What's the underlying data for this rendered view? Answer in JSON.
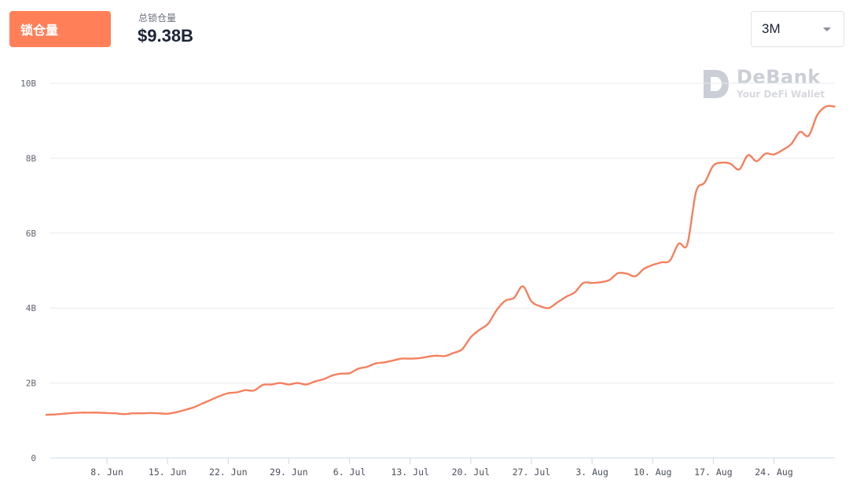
{
  "header": {
    "tab_label": "锁仓量",
    "stat_label": "总锁仓量",
    "stat_value": "$9.38B",
    "range": "3M"
  },
  "watermark": {
    "brand": "DeBank",
    "tagline": "Your DeFi Wallet"
  },
  "colors": {
    "accent": "#ff8058",
    "line": "#f48060",
    "grid": "#e9ebef",
    "axis": "#cdd8e8"
  },
  "icons": {
    "range_dropdown": "caret-down-icon",
    "watermark_logo": "debank-logo-icon"
  },
  "chart_data": {
    "type": "line",
    "title": "",
    "xlabel": "",
    "ylabel": "",
    "ylim": [
      0,
      10
    ],
    "y_unit": "B",
    "y_ticks": [
      0,
      2,
      4,
      6,
      8,
      10
    ],
    "y_tick_labels": [
      "0",
      "2B",
      "4B",
      "6B",
      "8B",
      "10B"
    ],
    "grid": true,
    "legend": "none",
    "x_tick_labels": [
      {
        "date": "2020-06-08",
        "label": "8. Jun"
      },
      {
        "date": "2020-06-15",
        "label": "15. Jun"
      },
      {
        "date": "2020-06-22",
        "label": "22. Jun"
      },
      {
        "date": "2020-06-29",
        "label": "29. Jun"
      },
      {
        "date": "2020-07-06",
        "label": "6. Jul"
      },
      {
        "date": "2020-07-13",
        "label": "13. Jul"
      },
      {
        "date": "2020-07-20",
        "label": "20. Jul"
      },
      {
        "date": "2020-07-27",
        "label": "27. Jul"
      },
      {
        "date": "2020-08-03",
        "label": "3. Aug"
      },
      {
        "date": "2020-08-10",
        "label": "10. Aug"
      },
      {
        "date": "2020-08-17",
        "label": "17. Aug"
      },
      {
        "date": "2020-08-24",
        "label": "24. Aug"
      }
    ],
    "series": [
      {
        "values": [
          [
            "2020-06-01",
            1.15
          ],
          [
            "2020-06-02",
            1.16
          ],
          [
            "2020-06-03",
            1.18
          ],
          [
            "2020-06-04",
            1.2
          ],
          [
            "2020-06-05",
            1.21
          ],
          [
            "2020-06-06",
            1.21
          ],
          [
            "2020-06-07",
            1.21
          ],
          [
            "2020-06-08",
            1.2
          ],
          [
            "2020-06-09",
            1.19
          ],
          [
            "2020-06-10",
            1.17
          ],
          [
            "2020-06-11",
            1.19
          ],
          [
            "2020-06-12",
            1.19
          ],
          [
            "2020-06-13",
            1.2
          ],
          [
            "2020-06-14",
            1.19
          ],
          [
            "2020-06-15",
            1.18
          ],
          [
            "2020-06-16",
            1.22
          ],
          [
            "2020-06-17",
            1.28
          ],
          [
            "2020-06-18",
            1.35
          ],
          [
            "2020-06-19",
            1.45
          ],
          [
            "2020-06-20",
            1.55
          ],
          [
            "2020-06-21",
            1.65
          ],
          [
            "2020-06-22",
            1.73
          ],
          [
            "2020-06-23",
            1.75
          ],
          [
            "2020-06-24",
            1.81
          ],
          [
            "2020-06-25",
            1.8
          ],
          [
            "2020-06-26",
            1.95
          ],
          [
            "2020-06-27",
            1.96
          ],
          [
            "2020-06-28",
            2.0
          ],
          [
            "2020-06-29",
            1.96
          ],
          [
            "2020-06-30",
            2.0
          ],
          [
            "2020-07-01",
            1.96
          ],
          [
            "2020-07-02",
            2.04
          ],
          [
            "2020-07-03",
            2.1
          ],
          [
            "2020-07-04",
            2.2
          ],
          [
            "2020-07-05",
            2.25
          ],
          [
            "2020-07-06",
            2.26
          ],
          [
            "2020-07-07",
            2.38
          ],
          [
            "2020-07-08",
            2.43
          ],
          [
            "2020-07-09",
            2.52
          ],
          [
            "2020-07-10",
            2.55
          ],
          [
            "2020-07-11",
            2.6
          ],
          [
            "2020-07-12",
            2.65
          ],
          [
            "2020-07-13",
            2.65
          ],
          [
            "2020-07-14",
            2.66
          ],
          [
            "2020-07-15",
            2.7
          ],
          [
            "2020-07-16",
            2.73
          ],
          [
            "2020-07-17",
            2.72
          ],
          [
            "2020-07-18",
            2.8
          ],
          [
            "2020-07-19",
            2.9
          ],
          [
            "2020-07-20",
            3.22
          ],
          [
            "2020-07-21",
            3.42
          ],
          [
            "2020-07-22",
            3.58
          ],
          [
            "2020-07-23",
            3.95
          ],
          [
            "2020-07-24",
            4.2
          ],
          [
            "2020-07-25",
            4.27
          ],
          [
            "2020-07-26",
            4.58
          ],
          [
            "2020-07-27",
            4.18
          ],
          [
            "2020-07-28",
            4.05
          ],
          [
            "2020-07-29",
            4.0
          ],
          [
            "2020-07-30",
            4.15
          ],
          [
            "2020-07-31",
            4.3
          ],
          [
            "2020-08-01",
            4.42
          ],
          [
            "2020-08-02",
            4.67
          ],
          [
            "2020-08-03",
            4.67
          ],
          [
            "2020-08-04",
            4.69
          ],
          [
            "2020-08-05",
            4.75
          ],
          [
            "2020-08-06",
            4.93
          ],
          [
            "2020-08-07",
            4.92
          ],
          [
            "2020-08-08",
            4.85
          ],
          [
            "2020-08-09",
            5.05
          ],
          [
            "2020-08-10",
            5.15
          ],
          [
            "2020-08-11",
            5.22
          ],
          [
            "2020-08-12",
            5.27
          ],
          [
            "2020-08-13",
            5.72
          ],
          [
            "2020-08-14",
            5.7
          ],
          [
            "2020-08-15",
            7.1
          ],
          [
            "2020-08-16",
            7.35
          ],
          [
            "2020-08-17",
            7.8
          ],
          [
            "2020-08-18",
            7.88
          ],
          [
            "2020-08-19",
            7.85
          ],
          [
            "2020-08-20",
            7.7
          ],
          [
            "2020-08-21",
            8.08
          ],
          [
            "2020-08-22",
            7.92
          ],
          [
            "2020-08-23",
            8.12
          ],
          [
            "2020-08-24",
            8.1
          ],
          [
            "2020-08-25",
            8.22
          ],
          [
            "2020-08-26",
            8.38
          ],
          [
            "2020-08-27",
            8.7
          ],
          [
            "2020-08-28",
            8.6
          ],
          [
            "2020-08-29",
            9.15
          ],
          [
            "2020-08-30",
            9.38
          ],
          [
            "2020-08-31",
            9.38
          ]
        ]
      }
    ]
  }
}
